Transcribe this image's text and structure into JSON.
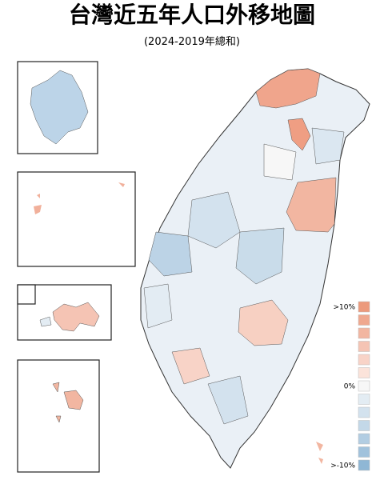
{
  "header": {
    "title": "台灣近五年人口外移地圖",
    "subtitle": "(2024-2019年總和)"
  },
  "legend": {
    "items": [
      {
        "label": ">10%",
        "color": "#ec9a7c"
      },
      {
        "color": "#efa88f"
      },
      {
        "color": "#f2b6a1"
      },
      {
        "color": "#f5c4b4"
      },
      {
        "color": "#f8d3c7"
      },
      {
        "color": "#fbe3da"
      },
      {
        "label": "0%",
        "color": "#f7f7f7"
      },
      {
        "color": "#e3ecf3"
      },
      {
        "color": "#d3e2ee"
      },
      {
        "color": "#c3d8e8"
      },
      {
        "color": "#b2cde2"
      },
      {
        "color": "#a1c2dc"
      },
      {
        "label": ">-10%",
        "color": "#8fb7d5"
      }
    ]
  }
}
